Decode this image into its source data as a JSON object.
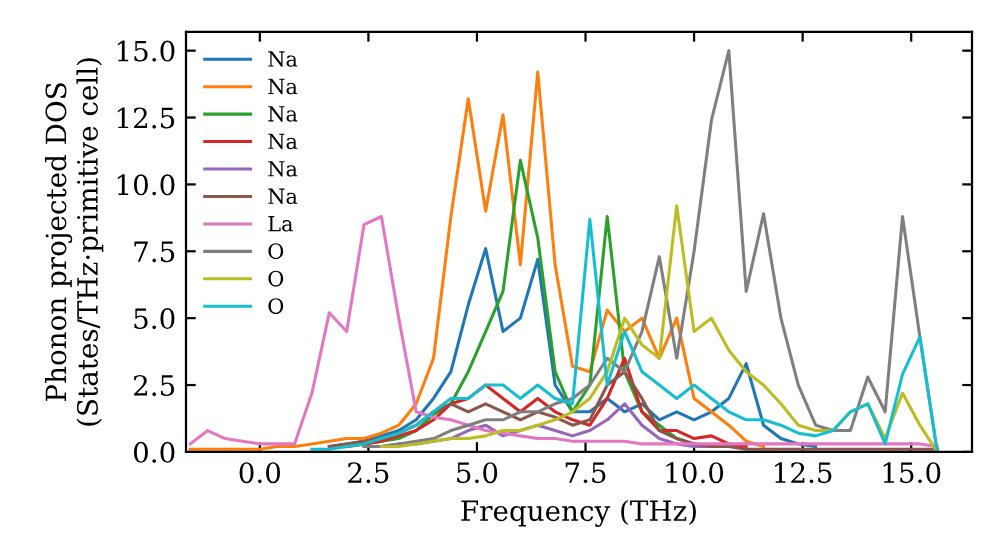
{
  "chart_data": {
    "type": "line",
    "xlabel": "Frequency (THz)",
    "ylabel": "Phonon projected DOS\n(States/THz·primitive cell)",
    "x": [
      -1.6,
      -1.2,
      -0.8,
      -0.4,
      0,
      0.4,
      0.8,
      1.2,
      1.6,
      2.0,
      2.4,
      2.8,
      3.2,
      3.6,
      4.0,
      4.4,
      4.8,
      5.2,
      5.6,
      6.0,
      6.4,
      6.8,
      7.2,
      7.6,
      8.0,
      8.4,
      8.8,
      9.2,
      9.6,
      10.0,
      10.4,
      10.8,
      11.2,
      11.6,
      12.0,
      12.4,
      12.8,
      13.2,
      13.6,
      14.0,
      14.4,
      14.8,
      15.2,
      15.6
    ],
    "xlim": [
      -1.7,
      16.4
    ],
    "xticks": [
      {
        "value": 0,
        "label": "0.0"
      },
      2.5,
      {
        "value": 5,
        "label": "5.0"
      },
      7.5,
      {
        "value": 10,
        "label": "10.0"
      },
      12.5,
      {
        "value": 15,
        "label": "15.0"
      }
    ],
    "ylim": [
      0,
      15.7
    ],
    "yticks": [
      {
        "value": 0,
        "label": "0.0"
      },
      2.5,
      {
        "value": 5,
        "label": "5.0"
      },
      7.5,
      {
        "value": 10,
        "label": "10.0"
      },
      12.5,
      {
        "value": 15,
        "label": "15.0"
      }
    ],
    "legend": "top left",
    "grid": false,
    "series": [
      {
        "name": "Na",
        "color": "#1f77b4",
        "values": [
          null,
          null,
          null,
          null,
          null,
          null,
          null,
          null,
          0.2,
          0.3,
          0.4,
          0.6,
          0.8,
          1.2,
          2.0,
          3.0,
          5.5,
          7.6,
          4.5,
          5.0,
          7.2,
          2.5,
          1.5,
          1.5,
          2.0,
          1.5,
          1.8,
          1.2,
          1.5,
          1.2,
          1.5,
          2.0,
          3.3,
          1.0,
          0.5,
          0.3,
          0.2,
          null,
          null,
          null,
          null,
          null,
          null,
          null
        ]
      },
      {
        "name": "Na",
        "color": "#ff7f0e",
        "values": [
          0.1,
          0.1,
          0.1,
          0.1,
          0.1,
          0.2,
          0.2,
          0.3,
          0.4,
          0.5,
          0.5,
          0.7,
          1.0,
          1.8,
          3.5,
          8.8,
          13.2,
          9.0,
          12.6,
          7.0,
          14.2,
          7.0,
          3.2,
          3.0,
          5.3,
          4.5,
          5.0,
          3.5,
          5.0,
          2.0,
          1.5,
          1.0,
          0.4,
          0.2,
          null,
          null,
          null,
          null,
          null,
          null,
          null,
          null,
          null,
          null
        ]
      },
      {
        "name": "Na",
        "color": "#2ca02c",
        "values": [
          null,
          null,
          null,
          null,
          null,
          null,
          null,
          null,
          null,
          0.2,
          0.3,
          0.4,
          0.5,
          0.8,
          1.4,
          1.8,
          3.0,
          4.5,
          6.0,
          10.9,
          8.0,
          3.0,
          1.5,
          2.5,
          8.8,
          3.0,
          1.5,
          1.0,
          0.5,
          0.3,
          null,
          null,
          null,
          null,
          null,
          null,
          null,
          null,
          null,
          null,
          null,
          null,
          null,
          null
        ]
      },
      {
        "name": "Na",
        "color": "#d62728",
        "values": [
          null,
          null,
          null,
          null,
          null,
          null,
          null,
          null,
          null,
          0.2,
          0.3,
          0.4,
          0.6,
          0.8,
          1.2,
          1.8,
          2.0,
          2.5,
          2.0,
          1.5,
          2.0,
          1.5,
          1.2,
          1.0,
          2.0,
          3.5,
          1.5,
          0.8,
          0.8,
          0.5,
          0.6,
          0.3,
          0.2,
          null,
          null,
          null,
          null,
          null,
          null,
          null,
          null,
          null,
          null,
          null
        ]
      },
      {
        "name": "Na",
        "color": "#9467bd",
        "values": [
          null,
          null,
          null,
          null,
          null,
          null,
          null,
          null,
          null,
          null,
          0.2,
          0.2,
          0.3,
          0.3,
          0.4,
          0.5,
          0.8,
          1.0,
          0.6,
          0.8,
          1.0,
          0.8,
          0.6,
          0.8,
          1.2,
          1.8,
          1.0,
          0.5,
          0.3,
          0.2,
          0.2,
          null,
          null,
          null,
          null,
          null,
          null,
          null,
          null,
          null,
          null,
          null,
          null,
          null
        ]
      },
      {
        "name": "Na",
        "color": "#8c564b",
        "values": [
          null,
          null,
          null,
          null,
          null,
          null,
          null,
          null,
          0.2,
          0.3,
          0.4,
          0.5,
          0.7,
          1.0,
          1.5,
          1.8,
          1.5,
          1.8,
          1.5,
          1.2,
          1.5,
          1.3,
          1.0,
          1.2,
          2.5,
          3.0,
          2.0,
          0.8,
          0.5,
          0.3,
          0.2,
          0.2,
          0.1,
          0.1,
          0.1,
          0.1,
          0.1,
          0.1,
          0.1,
          0.1,
          0.1,
          0.1,
          0.1,
          0.1
        ]
      },
      {
        "name": "La",
        "color": "#e377c2",
        "values": [
          0.3,
          0.8,
          0.5,
          0.4,
          0.3,
          0.3,
          0.3,
          2.2,
          5.2,
          4.5,
          8.5,
          8.8,
          5.0,
          1.5,
          1.3,
          1.2,
          1.0,
          0.8,
          0.7,
          0.6,
          0.5,
          0.5,
          0.4,
          0.4,
          0.4,
          0.4,
          0.3,
          0.3,
          0.3,
          0.3,
          0.3,
          0.3,
          0.3,
          0.3,
          0.3,
          0.3,
          0.3,
          0.3,
          0.3,
          0.3,
          0.3,
          0.3,
          0.3,
          0.2
        ]
      },
      {
        "name": "O",
        "color": "#7f7f7f",
        "values": [
          null,
          null,
          null,
          null,
          null,
          null,
          null,
          null,
          null,
          null,
          0.2,
          0.2,
          0.3,
          0.4,
          0.5,
          0.8,
          1.0,
          1.2,
          1.2,
          1.5,
          1.5,
          1.8,
          2.0,
          2.5,
          3.5,
          3.0,
          4.5,
          7.3,
          3.5,
          7.5,
          12.4,
          15.0,
          6.0,
          8.9,
          5.0,
          2.5,
          1.0,
          0.8,
          0.8,
          2.8,
          1.5,
          8.8,
          4.3,
          0.0
        ]
      },
      {
        "name": "O",
        "color": "#bcbd22",
        "values": [
          null,
          null,
          null,
          null,
          null,
          null,
          null,
          null,
          null,
          null,
          null,
          0.2,
          0.2,
          0.3,
          0.4,
          0.5,
          0.5,
          0.6,
          0.8,
          0.8,
          1.0,
          1.2,
          1.5,
          2.0,
          3.0,
          5.0,
          4.0,
          3.5,
          9.2,
          4.5,
          5.0,
          3.8,
          3.0,
          2.5,
          1.8,
          1.0,
          0.8,
          0.8,
          1.5,
          1.8,
          0.5,
          2.2,
          1.0,
          0.0
        ]
      },
      {
        "name": "O",
        "color": "#17becf",
        "values": [
          null,
          null,
          null,
          null,
          null,
          null,
          null,
          0.1,
          0.1,
          0.2,
          0.3,
          0.5,
          0.7,
          1.0,
          1.5,
          2.0,
          2.0,
          2.5,
          2.5,
          2.0,
          2.5,
          2.0,
          1.8,
          8.7,
          2.5,
          4.5,
          3.0,
          2.5,
          2.0,
          2.5,
          2.0,
          1.5,
          1.2,
          1.2,
          1.0,
          0.7,
          0.6,
          0.8,
          1.5,
          1.8,
          0.3,
          2.9,
          4.3,
          0.0
        ]
      }
    ]
  }
}
